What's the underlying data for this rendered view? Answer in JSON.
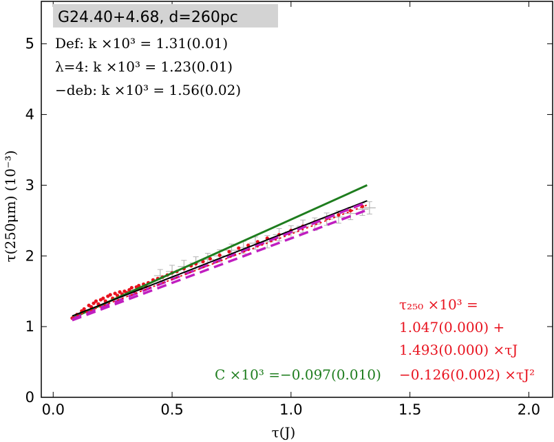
{
  "chart_data": {
    "type": "scatter",
    "title": "G24.40+4.68, d=260pc",
    "xlabel": "τ(J)",
    "ylabel": "τ(250μm) (10⁻³)",
    "xlim": [
      -0.05,
      2.1
    ],
    "ylim": [
      0,
      5.6
    ],
    "xticks": [
      0.0,
      0.5,
      1.0,
      1.5,
      2.0
    ],
    "xtick_labels": [
      "0.0",
      "0.5",
      "1.0",
      "1.5",
      "2.0"
    ],
    "yticks": [
      0,
      1,
      2,
      3,
      4,
      5
    ],
    "ytick_labels": [
      "0",
      "1",
      "2",
      "3",
      "4",
      "5"
    ],
    "fit_text": [
      "Def:   k ×10³ = 1.31(0.01)",
      "λ=4:  k ×10³ = 1.23(0.01)",
      "−deb: k ×10³ = 1.56(0.02)"
    ],
    "poly_text": [
      "τ₂₅₀ ×10³  =",
      "1.047(0.000) +",
      "1.493(0.000) ×τJ",
      "−0.126(0.002) ×τJ²"
    ],
    "c_text": "C ×10³ =−0.097(0.010)",
    "lines": [
      {
        "style": "solid",
        "color": "#1e7d1e",
        "x": [
          0.08,
          1.32
        ],
        "y": [
          1.12,
          3.0
        ]
      },
      {
        "style": "solid",
        "color": "#000000",
        "x": [
          0.08,
          1.32
        ],
        "y": [
          1.15,
          2.78
        ]
      },
      {
        "style": "dashed",
        "color": "#c01ec0",
        "x": [
          0.08,
          1.32
        ],
        "y": [
          1.09,
          2.65
        ]
      },
      {
        "style": "dashed",
        "color": "#c01ec0",
        "x": [
          0.08,
          1.32
        ],
        "y": [
          1.11,
          2.76
        ]
      },
      {
        "style": "dotted",
        "color": "#e8121e",
        "x": [
          0.08,
          1.32
        ],
        "y": [
          1.13,
          2.72
        ]
      }
    ],
    "scatter_red": {
      "color": "#e8121e",
      "x": [
        0.08,
        0.1,
        0.12,
        0.13,
        0.15,
        0.16,
        0.17,
        0.18,
        0.19,
        0.2,
        0.21,
        0.22,
        0.23,
        0.24,
        0.25,
        0.26,
        0.27,
        0.28,
        0.29,
        0.3,
        0.31,
        0.32,
        0.33,
        0.34,
        0.35,
        0.36,
        0.37,
        0.38,
        0.39,
        0.4,
        0.42,
        0.44,
        0.46,
        0.48,
        0.5,
        0.52,
        0.55,
        0.58,
        0.6,
        0.63,
        0.66,
        0.7,
        0.74,
        0.78,
        0.82,
        0.86,
        0.9,
        0.95,
        1.0,
        1.05,
        1.1,
        1.15,
        1.2,
        1.25,
        1.3
      ],
      "y": [
        1.12,
        1.17,
        1.22,
        1.25,
        1.3,
        1.28,
        1.33,
        1.36,
        1.32,
        1.38,
        1.4,
        1.36,
        1.43,
        1.45,
        1.4,
        1.47,
        1.44,
        1.49,
        1.46,
        1.5,
        1.48,
        1.52,
        1.55,
        1.5,
        1.56,
        1.58,
        1.54,
        1.6,
        1.57,
        1.62,
        1.66,
        1.68,
        1.7,
        1.73,
        1.76,
        1.78,
        1.82,
        1.86,
        1.89,
        1.92,
        1.96,
        2.01,
        2.06,
        2.11,
        2.15,
        2.2,
        2.25,
        2.3,
        2.36,
        2.42,
        2.48,
        2.53,
        2.58,
        2.64,
        2.7
      ]
    },
    "scatter_gray": {
      "color": "#b4b4b4",
      "x": [
        0.45,
        0.5,
        0.55,
        0.6,
        0.65,
        0.7,
        0.75,
        0.8,
        0.85,
        0.9,
        0.95,
        1.0,
        1.05,
        1.1,
        1.15,
        1.2,
        1.25,
        1.3,
        1.33
      ],
      "y": [
        1.72,
        1.78,
        1.85,
        1.9,
        1.95,
        2.0,
        2.08,
        2.12,
        2.18,
        2.2,
        2.3,
        2.34,
        2.42,
        2.45,
        2.52,
        2.55,
        2.6,
        2.66,
        2.68
      ]
    }
  }
}
